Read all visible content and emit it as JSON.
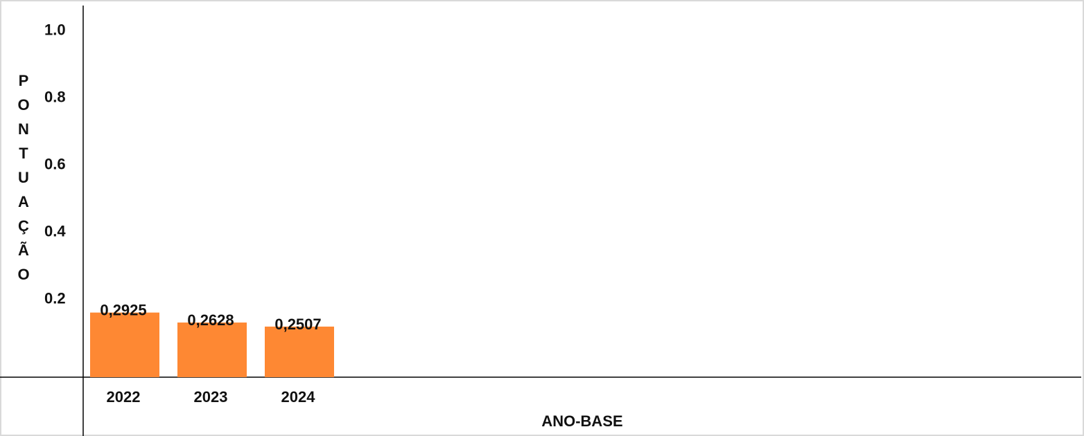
{
  "chart_data": {
    "type": "bar",
    "categories": [
      "2022",
      "2023",
      "2024"
    ],
    "values": [
      0.2925,
      0.2628,
      0.2507
    ],
    "data_labels": [
      "0,2925",
      "0,2628",
      "0,2507"
    ],
    "xlabel": "ANO-BASE",
    "ylabel_letters": [
      "P",
      "O",
      "N",
      "T",
      "U",
      "A",
      "Ç",
      "Ã",
      "O"
    ],
    "ytick_labels": [
      "1.0",
      "0.8",
      "0.6",
      "0.4",
      "0.2"
    ],
    "ylim": [
      0.1,
      1.1
    ],
    "grid": false,
    "bar_color": "#fe8833"
  }
}
